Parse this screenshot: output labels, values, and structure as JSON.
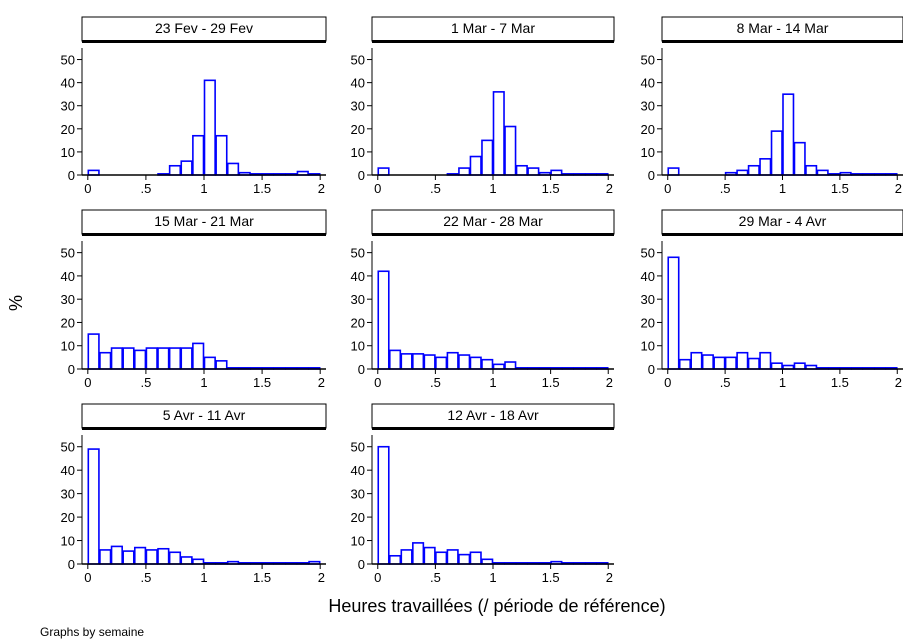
{
  "figure": {
    "ylabel": "%",
    "xlabel": "Heures travaillées (/ période de référence)",
    "note": "Graphs by semaine",
    "bar_color": "#0000ff"
  },
  "chart_data": {
    "type": "bar",
    "bin_width": 0.1,
    "bin_starts": [
      0,
      0.1,
      0.2,
      0.3,
      0.4,
      0.5,
      0.6,
      0.7,
      0.8,
      0.9,
      1.0,
      1.1,
      1.2,
      1.3,
      1.4,
      1.5,
      1.6,
      1.7,
      1.8,
      1.9
    ],
    "xlim": [
      -0.05,
      2.05
    ],
    "ylim": [
      0,
      55
    ],
    "xticks": [
      0,
      0.5,
      1,
      1.5,
      2
    ],
    "xtick_labels": [
      "0",
      ".5",
      "1",
      "1.5",
      "2"
    ],
    "yticks": [
      0,
      10,
      20,
      30,
      40,
      50
    ],
    "ytick_labels": [
      "0",
      "10",
      "20",
      "30",
      "40",
      "50"
    ],
    "panels": [
      {
        "title": "23 Fev - 29 Fev",
        "show_xticks": true,
        "values": [
          2,
          0,
          0,
          0,
          0,
          0,
          0.5,
          4,
          6,
          17,
          41,
          17,
          5,
          1,
          0.5,
          0.5,
          0.5,
          0.5,
          1.5,
          0.5
        ]
      },
      {
        "title": "1 Mar - 7 Mar",
        "show_xticks": true,
        "values": [
          3,
          0,
          0,
          0,
          0,
          0,
          0.5,
          3,
          8,
          15,
          36,
          21,
          4,
          3,
          1,
          2,
          0.5,
          0.5,
          0.5,
          0.5
        ]
      },
      {
        "title": "8 Mar - 14 Mar",
        "show_xticks": true,
        "values": [
          3,
          0,
          0,
          0,
          0,
          1,
          2,
          4,
          7,
          19,
          35,
          14,
          4,
          2,
          0.5,
          1,
          0.5,
          0.5,
          0.5,
          0.5
        ]
      },
      {
        "title": "15 Mar - 21 Mar",
        "show_xticks": true,
        "values": [
          15,
          7,
          9,
          9,
          8,
          9,
          9,
          9,
          9,
          11,
          5,
          3.5,
          0.5,
          0.5,
          0.5,
          0.5,
          0.5,
          0.5,
          0.5,
          0.5
        ]
      },
      {
        "title": "22 Mar - 28 Mar",
        "show_xticks": true,
        "values": [
          42,
          8,
          6.5,
          6.5,
          6,
          5,
          7,
          6,
          5,
          4,
          2,
          3,
          0.5,
          0.5,
          0.5,
          0.5,
          0.5,
          0.5,
          0.5,
          0.5
        ]
      },
      {
        "title": "29 Mar - 4 Avr",
        "show_xticks": true,
        "values": [
          48,
          4,
          7,
          6,
          5,
          5,
          7,
          4.5,
          7,
          2.5,
          1.5,
          2.5,
          1.5,
          0.5,
          0.5,
          0.5,
          0.5,
          0.5,
          0.5,
          0.5
        ]
      },
      {
        "title": "5 Avr - 11 Avr",
        "show_xticks": true,
        "values": [
          49,
          6,
          7.5,
          5.5,
          7,
          6,
          6.5,
          5,
          3,
          2,
          0.5,
          0.5,
          1,
          0.5,
          0.5,
          0.5,
          0.5,
          0.5,
          0.5,
          1
        ]
      },
      {
        "title": "12 Avr - 18 Avr",
        "show_xticks": true,
        "values": [
          50,
          3.5,
          6,
          9,
          7,
          5,
          6,
          4,
          5,
          2,
          0.5,
          0.5,
          0.5,
          0.5,
          0.5,
          1,
          0.5,
          0.5,
          0.5,
          0.5
        ]
      }
    ]
  }
}
